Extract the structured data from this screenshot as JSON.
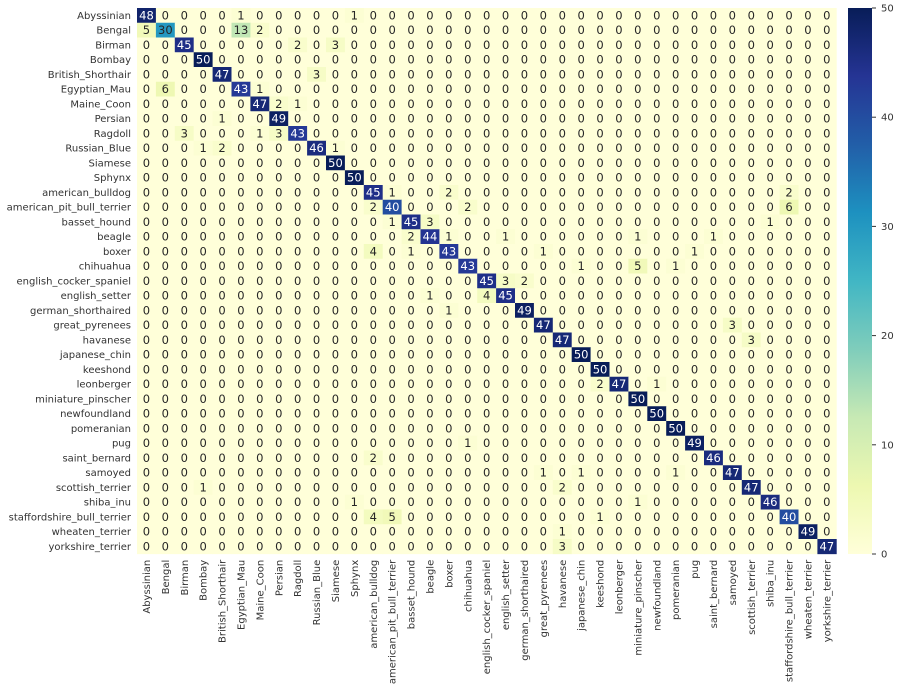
{
  "chart_data": {
    "type": "heatmap",
    "title": "",
    "xlabel": "",
    "ylabel": "",
    "labels": [
      "Abyssinian",
      "Bengal",
      "Birman",
      "Bombay",
      "British_Shorthair",
      "Egyptian_Mau",
      "Maine_Coon",
      "Persian",
      "Ragdoll",
      "Russian_Blue",
      "Siamese",
      "Sphynx",
      "american_bulldog",
      "american_pit_bull_terrier",
      "basset_hound",
      "beagle",
      "boxer",
      "chihuahua",
      "english_cocker_spaniel",
      "english_setter",
      "german_shorthaired",
      "great_pyrenees",
      "havanese",
      "japanese_chin",
      "keeshond",
      "leonberger",
      "miniature_pinscher",
      "newfoundland",
      "pomeranian",
      "pug",
      "saint_bernard",
      "samoyed",
      "scottish_terrier",
      "shiba_inu",
      "staffordshire_bull_terrier",
      "wheaten_terrier",
      "yorkshire_terrier"
    ],
    "matrix": [
      [
        48,
        0,
        0,
        0,
        0,
        1,
        0,
        0,
        0,
        0,
        0,
        1,
        0,
        0,
        0,
        0,
        0,
        0,
        0,
        0,
        0,
        0,
        0,
        0,
        0,
        0,
        0,
        0,
        0,
        0,
        0,
        0,
        0,
        0,
        0,
        0,
        0
      ],
      [
        5,
        30,
        0,
        0,
        0,
        13,
        2,
        0,
        0,
        0,
        0,
        0,
        0,
        0,
        0,
        0,
        0,
        0,
        0,
        0,
        0,
        0,
        0,
        0,
        0,
        0,
        0,
        0,
        0,
        0,
        0,
        0,
        0,
        0,
        0,
        0,
        0
      ],
      [
        0,
        0,
        45,
        0,
        0,
        0,
        0,
        0,
        2,
        0,
        3,
        0,
        0,
        0,
        0,
        0,
        0,
        0,
        0,
        0,
        0,
        0,
        0,
        0,
        0,
        0,
        0,
        0,
        0,
        0,
        0,
        0,
        0,
        0,
        0,
        0,
        0
      ],
      [
        0,
        0,
        0,
        50,
        0,
        0,
        0,
        0,
        0,
        0,
        0,
        0,
        0,
        0,
        0,
        0,
        0,
        0,
        0,
        0,
        0,
        0,
        0,
        0,
        0,
        0,
        0,
        0,
        0,
        0,
        0,
        0,
        0,
        0,
        0,
        0,
        0
      ],
      [
        0,
        0,
        0,
        0,
        47,
        0,
        0,
        0,
        0,
        3,
        0,
        0,
        0,
        0,
        0,
        0,
        0,
        0,
        0,
        0,
        0,
        0,
        0,
        0,
        0,
        0,
        0,
        0,
        0,
        0,
        0,
        0,
        0,
        0,
        0,
        0,
        0
      ],
      [
        0,
        6,
        0,
        0,
        0,
        43,
        1,
        0,
        0,
        0,
        0,
        0,
        0,
        0,
        0,
        0,
        0,
        0,
        0,
        0,
        0,
        0,
        0,
        0,
        0,
        0,
        0,
        0,
        0,
        0,
        0,
        0,
        0,
        0,
        0,
        0,
        0
      ],
      [
        0,
        0,
        0,
        0,
        0,
        0,
        47,
        2,
        1,
        0,
        0,
        0,
        0,
        0,
        0,
        0,
        0,
        0,
        0,
        0,
        0,
        0,
        0,
        0,
        0,
        0,
        0,
        0,
        0,
        0,
        0,
        0,
        0,
        0,
        0,
        0,
        0
      ],
      [
        0,
        0,
        0,
        0,
        1,
        0,
        0,
        49,
        0,
        0,
        0,
        0,
        0,
        0,
        0,
        0,
        0,
        0,
        0,
        0,
        0,
        0,
        0,
        0,
        0,
        0,
        0,
        0,
        0,
        0,
        0,
        0,
        0,
        0,
        0,
        0,
        0
      ],
      [
        0,
        0,
        3,
        0,
        0,
        0,
        1,
        3,
        43,
        0,
        0,
        0,
        0,
        0,
        0,
        0,
        0,
        0,
        0,
        0,
        0,
        0,
        0,
        0,
        0,
        0,
        0,
        0,
        0,
        0,
        0,
        0,
        0,
        0,
        0,
        0,
        0
      ],
      [
        0,
        0,
        0,
        1,
        2,
        0,
        0,
        0,
        0,
        46,
        1,
        0,
        0,
        0,
        0,
        0,
        0,
        0,
        0,
        0,
        0,
        0,
        0,
        0,
        0,
        0,
        0,
        0,
        0,
        0,
        0,
        0,
        0,
        0,
        0,
        0,
        0
      ],
      [
        0,
        0,
        0,
        0,
        0,
        0,
        0,
        0,
        0,
        0,
        50,
        0,
        0,
        0,
        0,
        0,
        0,
        0,
        0,
        0,
        0,
        0,
        0,
        0,
        0,
        0,
        0,
        0,
        0,
        0,
        0,
        0,
        0,
        0,
        0,
        0,
        0
      ],
      [
        0,
        0,
        0,
        0,
        0,
        0,
        0,
        0,
        0,
        0,
        0,
        50,
        0,
        0,
        0,
        0,
        0,
        0,
        0,
        0,
        0,
        0,
        0,
        0,
        0,
        0,
        0,
        0,
        0,
        0,
        0,
        0,
        0,
        0,
        0,
        0,
        0
      ],
      [
        0,
        0,
        0,
        0,
        0,
        0,
        0,
        0,
        0,
        0,
        0,
        0,
        45,
        1,
        0,
        0,
        2,
        0,
        0,
        0,
        0,
        0,
        0,
        0,
        0,
        0,
        0,
        0,
        0,
        0,
        0,
        0,
        0,
        0,
        2,
        0,
        0
      ],
      [
        0,
        0,
        0,
        0,
        0,
        0,
        0,
        0,
        0,
        0,
        0,
        0,
        2,
        40,
        0,
        0,
        0,
        2,
        0,
        0,
        0,
        0,
        0,
        0,
        0,
        0,
        0,
        0,
        0,
        0,
        0,
        0,
        0,
        0,
        6,
        0,
        0
      ],
      [
        0,
        0,
        0,
        0,
        0,
        0,
        0,
        0,
        0,
        0,
        0,
        0,
        0,
        1,
        45,
        3,
        0,
        0,
        0,
        0,
        0,
        0,
        0,
        0,
        0,
        0,
        0,
        0,
        0,
        0,
        0,
        0,
        0,
        1,
        0,
        0,
        0
      ],
      [
        0,
        0,
        0,
        0,
        0,
        0,
        0,
        0,
        0,
        0,
        0,
        0,
        0,
        0,
        2,
        44,
        1,
        0,
        0,
        1,
        0,
        0,
        0,
        0,
        0,
        0,
        1,
        0,
        0,
        0,
        1,
        0,
        0,
        0,
        0,
        0,
        0
      ],
      [
        0,
        0,
        0,
        0,
        0,
        0,
        0,
        0,
        0,
        0,
        0,
        0,
        4,
        0,
        1,
        0,
        43,
        0,
        0,
        0,
        0,
        1,
        0,
        0,
        0,
        0,
        0,
        0,
        0,
        1,
        0,
        0,
        0,
        0,
        0,
        0,
        0
      ],
      [
        0,
        0,
        0,
        0,
        0,
        0,
        0,
        0,
        0,
        0,
        0,
        0,
        0,
        0,
        0,
        0,
        0,
        43,
        0,
        0,
        0,
        0,
        0,
        1,
        0,
        0,
        5,
        0,
        1,
        0,
        0,
        0,
        0,
        0,
        0,
        0,
        0
      ],
      [
        0,
        0,
        0,
        0,
        0,
        0,
        0,
        0,
        0,
        0,
        0,
        0,
        0,
        0,
        0,
        0,
        0,
        0,
        45,
        3,
        2,
        0,
        0,
        0,
        0,
        0,
        0,
        0,
        0,
        0,
        0,
        0,
        0,
        0,
        0,
        0,
        0
      ],
      [
        0,
        0,
        0,
        0,
        0,
        0,
        0,
        0,
        0,
        0,
        0,
        0,
        0,
        0,
        0,
        1,
        0,
        0,
        4,
        45,
        0,
        0,
        0,
        0,
        0,
        0,
        0,
        0,
        0,
        0,
        0,
        0,
        0,
        0,
        0,
        0,
        0
      ],
      [
        0,
        0,
        0,
        0,
        0,
        0,
        0,
        0,
        0,
        0,
        0,
        0,
        0,
        0,
        0,
        0,
        1,
        0,
        0,
        0,
        49,
        0,
        0,
        0,
        0,
        0,
        0,
        0,
        0,
        0,
        0,
        0,
        0,
        0,
        0,
        0,
        0
      ],
      [
        0,
        0,
        0,
        0,
        0,
        0,
        0,
        0,
        0,
        0,
        0,
        0,
        0,
        0,
        0,
        0,
        0,
        0,
        0,
        0,
        0,
        47,
        0,
        0,
        0,
        0,
        0,
        0,
        0,
        0,
        0,
        3,
        0,
        0,
        0,
        0,
        0
      ],
      [
        0,
        0,
        0,
        0,
        0,
        0,
        0,
        0,
        0,
        0,
        0,
        0,
        0,
        0,
        0,
        0,
        0,
        0,
        0,
        0,
        0,
        0,
        47,
        0,
        0,
        0,
        0,
        0,
        0,
        0,
        0,
        0,
        3,
        0,
        0,
        0,
        0
      ],
      [
        0,
        0,
        0,
        0,
        0,
        0,
        0,
        0,
        0,
        0,
        0,
        0,
        0,
        0,
        0,
        0,
        0,
        0,
        0,
        0,
        0,
        0,
        0,
        50,
        0,
        0,
        0,
        0,
        0,
        0,
        0,
        0,
        0,
        0,
        0,
        0,
        0
      ],
      [
        0,
        0,
        0,
        0,
        0,
        0,
        0,
        0,
        0,
        0,
        0,
        0,
        0,
        0,
        0,
        0,
        0,
        0,
        0,
        0,
        0,
        0,
        0,
        0,
        50,
        0,
        0,
        0,
        0,
        0,
        0,
        0,
        0,
        0,
        0,
        0,
        0
      ],
      [
        0,
        0,
        0,
        0,
        0,
        0,
        0,
        0,
        0,
        0,
        0,
        0,
        0,
        0,
        0,
        0,
        0,
        0,
        0,
        0,
        0,
        0,
        0,
        0,
        2,
        47,
        0,
        1,
        0,
        0,
        0,
        0,
        0,
        0,
        0,
        0,
        0
      ],
      [
        0,
        0,
        0,
        0,
        0,
        0,
        0,
        0,
        0,
        0,
        0,
        0,
        0,
        0,
        0,
        0,
        0,
        0,
        0,
        0,
        0,
        0,
        0,
        0,
        0,
        0,
        50,
        0,
        0,
        0,
        0,
        0,
        0,
        0,
        0,
        0,
        0
      ],
      [
        0,
        0,
        0,
        0,
        0,
        0,
        0,
        0,
        0,
        0,
        0,
        0,
        0,
        0,
        0,
        0,
        0,
        0,
        0,
        0,
        0,
        0,
        0,
        0,
        0,
        0,
        0,
        50,
        0,
        0,
        0,
        0,
        0,
        0,
        0,
        0,
        0
      ],
      [
        0,
        0,
        0,
        0,
        0,
        0,
        0,
        0,
        0,
        0,
        0,
        0,
        0,
        0,
        0,
        0,
        0,
        0,
        0,
        0,
        0,
        0,
        0,
        0,
        0,
        0,
        0,
        0,
        50,
        0,
        0,
        0,
        0,
        0,
        0,
        0,
        0
      ],
      [
        0,
        0,
        0,
        0,
        0,
        0,
        0,
        0,
        0,
        0,
        0,
        0,
        0,
        0,
        0,
        0,
        0,
        1,
        0,
        0,
        0,
        0,
        0,
        0,
        0,
        0,
        0,
        0,
        0,
        49,
        0,
        0,
        0,
        0,
        0,
        0,
        0
      ],
      [
        0,
        0,
        0,
        0,
        0,
        0,
        0,
        0,
        0,
        0,
        0,
        0,
        2,
        0,
        0,
        0,
        0,
        0,
        0,
        0,
        0,
        0,
        0,
        0,
        0,
        0,
        0,
        0,
        0,
        0,
        46,
        0,
        0,
        0,
        0,
        0,
        0
      ],
      [
        0,
        0,
        0,
        0,
        0,
        0,
        0,
        0,
        0,
        0,
        0,
        0,
        0,
        0,
        0,
        0,
        0,
        0,
        0,
        0,
        0,
        1,
        0,
        1,
        0,
        0,
        0,
        0,
        1,
        0,
        0,
        47,
        0,
        0,
        0,
        0,
        0
      ],
      [
        0,
        0,
        0,
        1,
        0,
        0,
        0,
        0,
        0,
        0,
        0,
        0,
        0,
        0,
        0,
        0,
        0,
        0,
        0,
        0,
        0,
        0,
        2,
        0,
        0,
        0,
        0,
        0,
        0,
        0,
        0,
        0,
        47,
        0,
        0,
        0,
        0
      ],
      [
        0,
        0,
        0,
        0,
        0,
        0,
        0,
        0,
        0,
        0,
        0,
        1,
        0,
        0,
        0,
        0,
        0,
        0,
        0,
        0,
        0,
        0,
        0,
        0,
        0,
        0,
        1,
        0,
        0,
        0,
        0,
        0,
        0,
        46,
        0,
        0,
        0
      ],
      [
        0,
        0,
        0,
        0,
        0,
        0,
        0,
        0,
        0,
        0,
        0,
        0,
        4,
        5,
        0,
        0,
        0,
        0,
        0,
        0,
        0,
        0,
        0,
        0,
        1,
        0,
        0,
        0,
        0,
        0,
        0,
        0,
        0,
        0,
        40,
        0,
        0
      ],
      [
        0,
        0,
        0,
        0,
        0,
        0,
        0,
        0,
        0,
        0,
        0,
        0,
        0,
        0,
        0,
        0,
        0,
        0,
        0,
        0,
        0,
        0,
        1,
        0,
        0,
        0,
        0,
        0,
        0,
        0,
        0,
        0,
        0,
        0,
        0,
        49,
        0
      ],
      [
        0,
        0,
        0,
        0,
        0,
        0,
        0,
        0,
        0,
        0,
        0,
        0,
        0,
        0,
        0,
        0,
        0,
        0,
        0,
        0,
        0,
        0,
        3,
        0,
        0,
        0,
        0,
        0,
        0,
        0,
        0,
        0,
        0,
        0,
        0,
        0,
        47
      ]
    ],
    "colorbar": {
      "min": 0,
      "max": 50,
      "ticks": [
        0,
        10,
        20,
        30,
        40,
        50
      ],
      "colormap": "YlGnBu"
    },
    "grid": false,
    "legend": "colorbar-right"
  }
}
